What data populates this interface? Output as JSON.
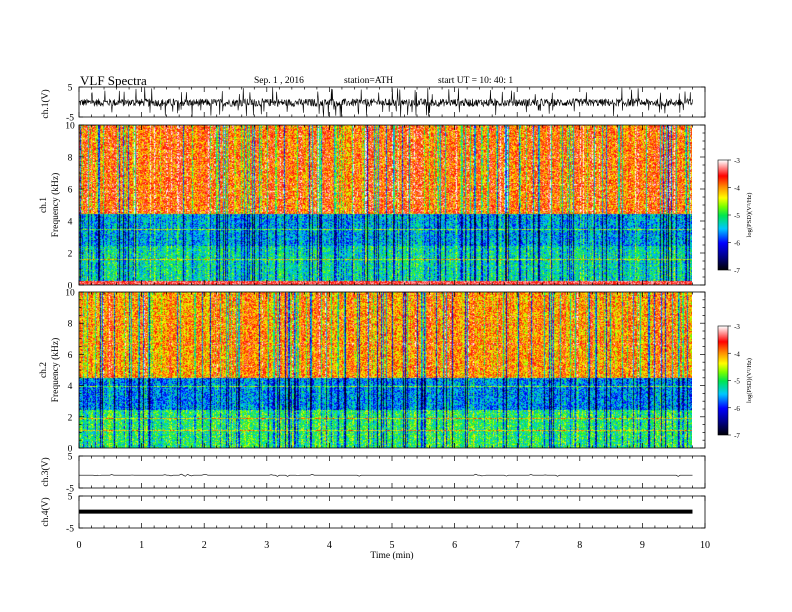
{
  "header": {
    "title": "VLF  Spectra",
    "date": "Sep. 1  , 2016",
    "station": "station=ATH",
    "start": "start  UT  =   10: 40: 1"
  },
  "chart_data": [
    {
      "type": "line",
      "panel": "ch1-waveform",
      "ylabel": "ch.1(V)",
      "ylim": [
        -5,
        5
      ],
      "yticks": [
        "5",
        "-5"
      ],
      "x": [
        0,
        9.8
      ],
      "description_series": "dense noisy waveform centred near -0.2 V, amplitude about ±1.5 V with spikes to -5"
    },
    {
      "type": "heatmap",
      "panel": "ch1-spectrogram",
      "ylabel": "ch.1\nFrequency  (kHz)",
      "ylim": [
        0,
        10
      ],
      "yticks": [
        "0",
        "2",
        "4",
        "6",
        "8",
        "10"
      ],
      "xlim": [
        0,
        10
      ],
      "data_end_min": 9.8,
      "colorbar": {
        "label": "log(PSD)(V²/Hz)",
        "range": [
          -7,
          -3
        ],
        "ticks": [
          "-3",
          "-4",
          "-5",
          "-6",
          "-7"
        ]
      },
      "bands": [
        {
          "freq_khz": [
            4.5,
            10
          ],
          "log_psd_typical": -3.8
        },
        {
          "freq_khz": [
            2.5,
            4.5
          ],
          "log_psd_typical": -5.5
        },
        {
          "freq_khz": [
            0.3,
            2.5
          ],
          "log_psd_typical": -5.2
        },
        {
          "freq_khz": [
            0,
            0.3
          ],
          "log_psd_typical": -3.5
        }
      ]
    },
    {
      "type": "heatmap",
      "panel": "ch2-spectrogram",
      "ylabel": "ch.2\nFrequency  (kHz)",
      "ylim": [
        0,
        10
      ],
      "yticks": [
        "0",
        "2",
        "4",
        "6",
        "8",
        "10"
      ],
      "xlim": [
        0,
        10
      ],
      "data_end_min": 9.8,
      "colorbar": {
        "label": "log(PSD)(V²/Hz)",
        "range": [
          -7,
          -3
        ],
        "ticks": [
          "-3",
          "-4",
          "-5",
          "-6",
          "-7"
        ]
      },
      "bands": [
        {
          "freq_khz": [
            4.5,
            10
          ],
          "log_psd_typical": -4.0
        },
        {
          "freq_khz": [
            2.5,
            4.5
          ],
          "log_psd_typical": -5.6
        },
        {
          "freq_khz": [
            0,
            2.5
          ],
          "log_psd_typical": -5.0
        }
      ]
    },
    {
      "type": "line",
      "panel": "ch3-waveform",
      "ylabel": "ch.3(V)",
      "ylim": [
        -5,
        5
      ],
      "yticks": [
        "5",
        "-5"
      ],
      "x": [
        0,
        9.8
      ],
      "y_level": -1.0
    },
    {
      "type": "line",
      "panel": "ch4-waveform",
      "ylabel": "ch.4(V)",
      "ylim": [
        -5,
        5
      ],
      "yticks": [
        "5",
        "-5"
      ],
      "x": [
        0,
        9.8
      ],
      "y_level": 0.1,
      "xlabel": "Time  (min)",
      "xlim": [
        0,
        10
      ],
      "xticks": [
        "0",
        "1",
        "2",
        "3",
        "4",
        "5",
        "6",
        "7",
        "8",
        "9",
        "10"
      ]
    }
  ]
}
